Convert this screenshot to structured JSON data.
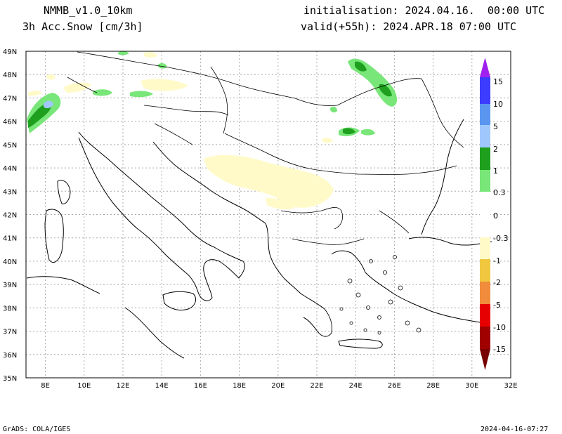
{
  "header": {
    "model": "NMMB_v1.0_10km",
    "variable": "3h Acc.Snow [cm/3h]",
    "init": "initialisation: 2024.04.16.  00:00 UTC",
    "valid": "valid(+55h): 2024.APR.18 07:00 UTC"
  },
  "axes": {
    "lat_labels": [
      "49N",
      "48N",
      "47N",
      "46N",
      "45N",
      "44N",
      "43N",
      "42N",
      "41N",
      "40N",
      "39N",
      "38N",
      "37N",
      "36N",
      "35N"
    ],
    "lon_labels": [
      "8E",
      "10E",
      "12E",
      "14E",
      "16E",
      "18E",
      "20E",
      "22E",
      "24E",
      "26E",
      "28E",
      "30E",
      "32E"
    ],
    "lat_range": [
      35,
      49
    ],
    "lon_range": [
      7,
      32
    ]
  },
  "colorbar": {
    "labels": [
      "15",
      "10",
      "5",
      "2",
      "1",
      "0.3",
      "0",
      "-0.3",
      "-1",
      "-2",
      "-5",
      "-10",
      "-15"
    ],
    "colors": {
      "purple": "#a020f0",
      "blue": "#3c3cff",
      "mid_blue": "#5a96f0",
      "light_blue": "#a0c8ff",
      "dark_green": "#1ea01e",
      "light_green": "#78e678",
      "white": "#ffffff",
      "pale_yellow": "#fffac8",
      "yellow": "#f0c840",
      "orange": "#f08c3c",
      "red": "#e60000",
      "dark_red": "#a00000",
      "maroon": "#780000"
    }
  },
  "footer": {
    "left": "GrADS: COLA/IGES",
    "right": "2024-04-16-07:27"
  }
}
